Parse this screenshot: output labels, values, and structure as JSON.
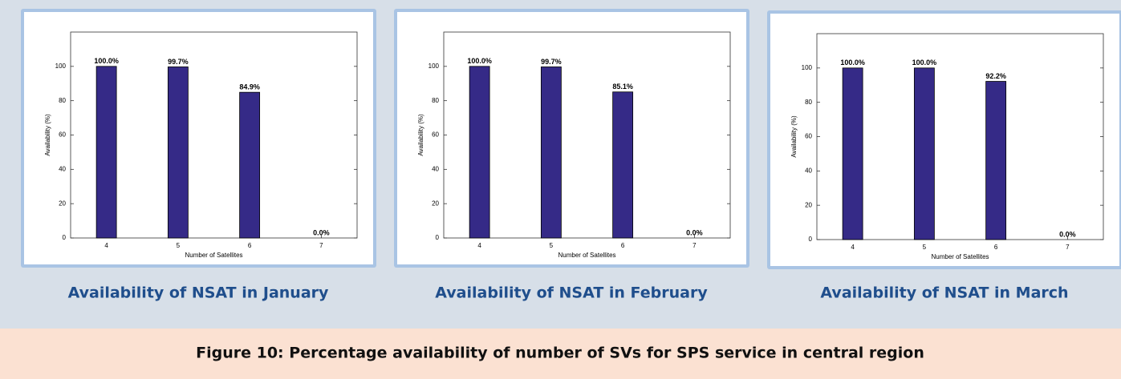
{
  "chart_data": [
    {
      "type": "bar",
      "title": "Availability of NSAT in January",
      "xlabel": "Number of Satellites",
      "ylabel": "Availability (%)",
      "categories": [
        "4",
        "5",
        "6",
        "7"
      ],
      "values": [
        100.0,
        99.7,
        84.9,
        0.0
      ],
      "value_labels": [
        "100.0%",
        "99.7%",
        "84.9%",
        "0.0%"
      ],
      "color": "#352a87",
      "ylim": [
        0,
        120
      ],
      "yticks": [
        0,
        20,
        40,
        60,
        80,
        100
      ],
      "grid": false
    },
    {
      "type": "bar",
      "title": "Availability of NSAT in February",
      "xlabel": "Number of Satellites",
      "ylabel": "Availability (%)",
      "categories": [
        "4",
        "5",
        "6",
        "7"
      ],
      "values": [
        100.0,
        99.7,
        85.1,
        0.0
      ],
      "value_labels": [
        "100.0%",
        "99.7%",
        "85.1%",
        "0.0%"
      ],
      "color": "#352a87",
      "ylim": [
        0,
        120
      ],
      "yticks": [
        0,
        20,
        40,
        60,
        80,
        100
      ],
      "grid": false
    },
    {
      "type": "bar",
      "title": "Availability of NSAT in March",
      "xlabel": "Number of Satellites",
      "ylabel": "Availability (%)",
      "categories": [
        "4",
        "5",
        "6",
        "7"
      ],
      "values": [
        100.0,
        100.0,
        92.2,
        0.0
      ],
      "value_labels": [
        "100.0%",
        "100.0%",
        "92.2%",
        "0.0%"
      ],
      "color": "#352a87",
      "ylim": [
        0,
        120
      ],
      "yticks": [
        0,
        20,
        40,
        60,
        80,
        100
      ],
      "grid": false
    }
  ],
  "figure_caption": "Figure 10: Percentage availability of number of SVs for SPS service in central region"
}
